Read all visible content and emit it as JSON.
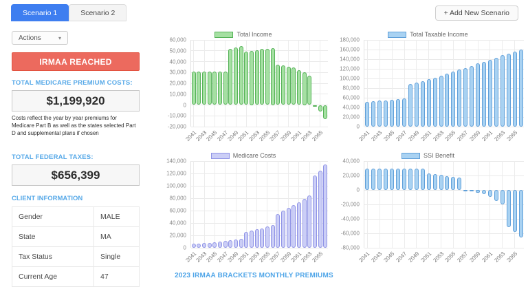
{
  "tabs": [
    {
      "label": "Scenario 1",
      "active": true
    },
    {
      "label": "Scenario 2",
      "active": false
    }
  ],
  "add_scenario_button": "+ Add New Scenario",
  "actions_button": {
    "label": "Actions",
    "caret": "▾"
  },
  "irmaa_banner": "IRMAA REACHED",
  "medicare_premiums": {
    "label": "TOTAL MEDICARE PREMIUM COSTS:",
    "value": "$1,199,920",
    "description": "Costs reflect the year by year premiums for Medicare Part B as well as the states selected Part D and supplemental plans if chosen"
  },
  "federal_taxes": {
    "label": "TOTAL FEDERAL TAXES:",
    "value": "$656,399"
  },
  "client_information": {
    "title": "CLIENT INFORMATION",
    "rows": [
      [
        "Gender",
        "MALE"
      ],
      [
        "State",
        "MA"
      ],
      [
        "Tax Status",
        "Single"
      ],
      [
        "Current Age",
        "47"
      ]
    ]
  },
  "irmaa_link": "2023 IRMAA BRACKETS MONTHLY PREMIUMS",
  "colors": {
    "accent_blue": "#3e7ef0",
    "label_blue": "#57a9e8",
    "banner_red": "#ec6a5e",
    "green_fill": "#a5e0a2",
    "green_border": "#55b257",
    "blue_fill": "#a9d2f2",
    "blue_border": "#5f9fd9",
    "purple_fill": "#cbcef6",
    "purple_border": "#8f93e6"
  },
  "chart_data": [
    {
      "type": "bar",
      "title": "Total Income",
      "fill": "#a5e0a2",
      "border": "#55b257",
      "ylim": [
        -20000,
        60000
      ],
      "ytick_step": 10000,
      "categories": [
        2041,
        2042,
        2043,
        2044,
        2045,
        2046,
        2047,
        2048,
        2049,
        2050,
        2051,
        2052,
        2053,
        2054,
        2055,
        2056,
        2057,
        2058,
        2059,
        2060,
        2061,
        2062,
        2063,
        2064,
        2065,
        2066
      ],
      "values": [
        31000,
        31000,
        31000,
        31000,
        31000,
        30500,
        30500,
        52000,
        53000,
        54000,
        49000,
        50000,
        50500,
        51500,
        52000,
        52500,
        37000,
        36500,
        35500,
        34500,
        32000,
        30000,
        27000,
        -1000,
        -6000,
        -13000
      ]
    },
    {
      "type": "bar",
      "title": "Total Taxable Income",
      "fill": "#a9d2f2",
      "border": "#5f9fd9",
      "ylim": [
        0,
        180000
      ],
      "ytick_step": 20000,
      "categories": [
        2041,
        2042,
        2043,
        2044,
        2045,
        2046,
        2047,
        2048,
        2049,
        2050,
        2051,
        2052,
        2053,
        2054,
        2055,
        2056,
        2057,
        2058,
        2059,
        2060,
        2061,
        2062,
        2063,
        2064,
        2065,
        2066
      ],
      "values": [
        52000,
        53000,
        54000,
        55000,
        56000,
        57000,
        58000,
        88000,
        92000,
        95000,
        99000,
        102000,
        106000,
        110000,
        114000,
        118000,
        122000,
        126000,
        131000,
        135000,
        139000,
        143000,
        148000,
        152000,
        156000,
        160000
      ]
    },
    {
      "type": "bar",
      "title": "Medicare Costs",
      "fill": "#cbcef6",
      "border": "#8f93e6",
      "ylim": [
        0,
        140000
      ],
      "ytick_step": 20000,
      "categories": [
        2041,
        2042,
        2043,
        2044,
        2045,
        2046,
        2047,
        2048,
        2049,
        2050,
        2051,
        2052,
        2053,
        2054,
        2055,
        2056,
        2057,
        2058,
        2059,
        2060,
        2061,
        2062,
        2063,
        2064,
        2065,
        2066
      ],
      "values": [
        6500,
        7000,
        7600,
        8300,
        9100,
        10000,
        11000,
        12200,
        13500,
        15000,
        26000,
        27500,
        29500,
        31500,
        34000,
        36500,
        55000,
        59500,
        64000,
        68500,
        73500,
        79000,
        85000,
        117000,
        125000,
        134000
      ]
    },
    {
      "type": "bar",
      "title": "SSI Benefit",
      "fill": "#a9d2f2",
      "border": "#5f9fd9",
      "ylim": [
        -80000,
        40000
      ],
      "ytick_step": 20000,
      "categories": [
        2041,
        2042,
        2043,
        2044,
        2045,
        2046,
        2047,
        2048,
        2049,
        2050,
        2051,
        2052,
        2053,
        2054,
        2055,
        2056,
        2057,
        2058,
        2059,
        2060,
        2061,
        2062,
        2063,
        2064,
        2065,
        2066
      ],
      "values": [
        30000,
        30000,
        30000,
        30000,
        30000,
        30000,
        30000,
        30000,
        30000,
        30000,
        23000,
        22000,
        21000,
        19500,
        18500,
        17500,
        -500,
        -1500,
        -3500,
        -6000,
        -9500,
        -15000,
        -20000,
        -51000,
        -58000,
        -66000
      ]
    }
  ]
}
